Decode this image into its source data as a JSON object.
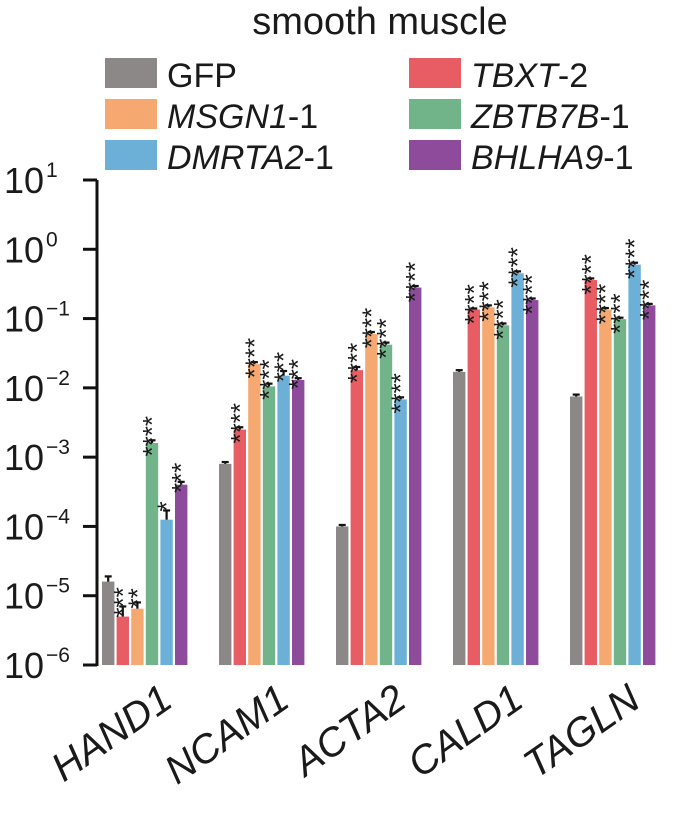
{
  "chart_data": {
    "type": "bar",
    "title": "smooth muscle",
    "y_scale": "log",
    "ylim": [
      1e-06,
      10
    ],
    "y_ticks": [
      {
        "base": "10",
        "exp": "1"
      },
      {
        "base": "10",
        "exp": "0"
      },
      {
        "base": "10",
        "exp": "−1"
      },
      {
        "base": "10",
        "exp": "−2"
      },
      {
        "base": "10",
        "exp": "−3"
      },
      {
        "base": "10",
        "exp": "−4"
      },
      {
        "base": "10",
        "exp": "−5"
      },
      {
        "base": "10",
        "exp": "−6"
      }
    ],
    "categories": [
      "HAND1",
      "NCAM1",
      "ACTA2",
      "CALD1",
      "TAGLN"
    ],
    "legend_position": "top",
    "series": [
      {
        "name": "GFP",
        "italic": "",
        "suffix": "",
        "color": "#8c8888",
        "values": [
          1.6e-05,
          0.0008,
          0.0001,
          0.017,
          0.0075
        ],
        "errors": [
          1.9e-05,
          0.00085,
          0.000105,
          0.018,
          0.008
        ],
        "sig": [
          "",
          "",
          "",
          "",
          ""
        ]
      },
      {
        "name": "TBXT-2",
        "italic": "TBXT",
        "suffix": "-2",
        "color": "#e85c64",
        "values": [
          5e-06,
          0.0025,
          0.018,
          0.135,
          0.36
        ],
        "errors": [
          7e-06,
          0.0027,
          0.02,
          0.14,
          0.38
        ],
        "sig": [
          "***",
          "****",
          "****",
          "****",
          "****"
        ]
      },
      {
        "name": "MSGN1-1",
        "italic": "MSGN1",
        "suffix": "-1",
        "color": "#f5a870",
        "values": [
          6.5e-06,
          0.022,
          0.06,
          0.145,
          0.135
        ],
        "errors": [
          8e-06,
          0.0235,
          0.064,
          0.155,
          0.142
        ],
        "sig": [
          "**",
          "****",
          "****",
          "****",
          "****"
        ]
      },
      {
        "name": "ZBTB7B-1",
        "italic": "ZBTB7B",
        "suffix": "-1",
        "color": "#72b489",
        "values": [
          0.0016,
          0.0105,
          0.042,
          0.08,
          0.098
        ],
        "errors": [
          0.00175,
          0.0115,
          0.045,
          0.085,
          0.103
        ],
        "sig": [
          "****",
          "****",
          "****",
          "****",
          "****"
        ]
      },
      {
        "name": "DMRTA2-1",
        "italic": "DMRTA2",
        "suffix": "-1",
        "color": "#6cb0d8",
        "values": [
          0.000125,
          0.015,
          0.0068,
          0.45,
          0.6
        ],
        "errors": [
          0.00017,
          0.0175,
          0.0073,
          0.48,
          0.64
        ],
        "sig": [
          "*",
          "***",
          "****",
          "****",
          "****"
        ]
      },
      {
        "name": "BHLHA9-1",
        "italic": "BHLHA9",
        "suffix": "-1",
        "color": "#8e4b9b",
        "values": [
          0.0004,
          0.013,
          0.28,
          0.185,
          0.155
        ],
        "errors": [
          0.00044,
          0.0138,
          0.295,
          0.195,
          0.163
        ],
        "sig": [
          "***",
          "***",
          "****",
          "****",
          "****"
        ]
      }
    ]
  }
}
